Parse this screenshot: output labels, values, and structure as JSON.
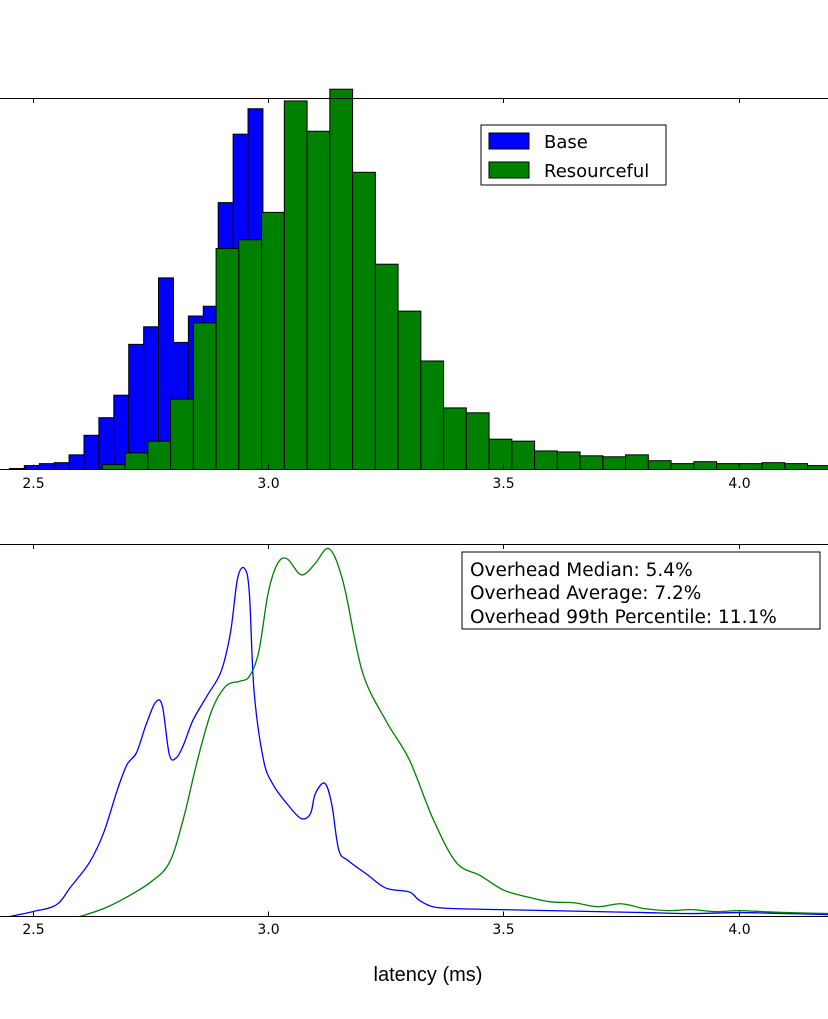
{
  "colors": {
    "base": "#0000ff",
    "resourceful": "#008000",
    "axis": "#000000",
    "background": "#ffffff"
  },
  "chart_data": [
    {
      "type": "bar",
      "subtype": "overlapping-histogram",
      "title": "",
      "xlabel": "",
      "ylabel": "",
      "xlim": [
        2.43,
        4.19
      ],
      "ylim": [
        0,
        380
      ],
      "xticks": [
        2.5,
        3.0,
        3.5,
        4.0
      ],
      "xtick_labels": [
        "2.5",
        "3.0",
        "3.5",
        "4.0"
      ],
      "yticks": [],
      "grid": false,
      "legend": {
        "position": "top-right",
        "entries": [
          "Base",
          "Resourceful"
        ]
      },
      "series": [
        {
          "name": "Base",
          "color": "#0000ff",
          "bin_start": 2.45,
          "bin_width": 0.0317,
          "values": [
            1,
            4,
            6,
            7,
            15,
            35,
            53,
            76,
            128,
            146,
            196,
            130,
            157,
            167,
            273,
            343,
            369,
            258,
            100,
            55,
            35,
            22,
            14,
            10,
            6,
            5,
            4,
            3,
            3,
            2,
            2,
            2,
            1,
            1,
            1,
            1,
            1,
            1,
            1,
            1,
            1,
            1
          ]
        },
        {
          "name": "Resourceful",
          "color": "#008000",
          "bin_start": 2.6475,
          "bin_width": 0.04836,
          "values": [
            5,
            17,
            29,
            72,
            150,
            226,
            235,
            263,
            377,
            346,
            389,
            304,
            210,
            162,
            111,
            63,
            58,
            31,
            29,
            19,
            18,
            14,
            13,
            15,
            9,
            6,
            8,
            6,
            6,
            7,
            6,
            4
          ]
        }
      ]
    },
    {
      "type": "line",
      "subtype": "density",
      "title": "",
      "xlabel": "latency (ms)",
      "ylabel": "",
      "xlim": [
        2.43,
        4.19
      ],
      "ylim": [
        0,
        3.8
      ],
      "xticks": [
        2.5,
        3.0,
        3.5,
        4.0
      ],
      "xtick_labels": [
        "2.5",
        "3.0",
        "3.5",
        "4.0"
      ],
      "yticks": [],
      "grid": false,
      "annotation": [
        "Overhead Median: 5.4%",
        "Overhead Average: 7.2%",
        "Overhead 99th Percentile: 11.1%"
      ],
      "series": [
        {
          "name": "Base",
          "color": "#0000ff",
          "x": [
            2.45,
            2.5,
            2.55,
            2.58,
            2.62,
            2.65,
            2.68,
            2.7,
            2.72,
            2.74,
            2.76,
            2.775,
            2.79,
            2.805,
            2.82,
            2.84,
            2.87,
            2.9,
            2.92,
            2.935,
            2.95,
            2.96,
            2.97,
            2.99,
            3.01,
            3.04,
            3.07,
            3.09,
            3.1,
            3.12,
            3.135,
            3.15,
            3.17,
            3.21,
            3.25,
            3.3,
            3.32,
            3.35,
            3.4,
            3.5,
            3.6,
            3.7,
            3.8,
            3.9,
            4.0,
            4.1,
            4.19
          ],
          "y": [
            0,
            0.05,
            0.12,
            0.3,
            0.55,
            0.85,
            1.3,
            1.55,
            1.67,
            1.95,
            2.18,
            2.15,
            1.65,
            1.62,
            1.75,
            2.0,
            2.25,
            2.5,
            2.9,
            3.45,
            3.55,
            3.3,
            2.3,
            1.6,
            1.35,
            1.15,
            1.0,
            1.05,
            1.25,
            1.36,
            1.15,
            0.68,
            0.57,
            0.43,
            0.29,
            0.25,
            0.17,
            0.1,
            0.08,
            0.07,
            0.06,
            0.05,
            0.04,
            0.03,
            0.04,
            0.03,
            0.02
          ]
        },
        {
          "name": "Resourceful",
          "color": "#008000",
          "x": [
            2.6,
            2.65,
            2.7,
            2.75,
            2.79,
            2.82,
            2.85,
            2.88,
            2.91,
            2.94,
            2.96,
            2.98,
            3.0,
            3.02,
            3.04,
            3.065,
            3.08,
            3.1,
            3.13,
            3.16,
            3.2,
            3.25,
            3.3,
            3.35,
            3.4,
            3.45,
            3.5,
            3.55,
            3.6,
            3.65,
            3.7,
            3.75,
            3.8,
            3.85,
            3.9,
            3.95,
            4.0,
            4.05,
            4.1,
            4.19
          ],
          "y": [
            0,
            0.08,
            0.2,
            0.35,
            0.55,
            1.0,
            1.6,
            2.1,
            2.35,
            2.4,
            2.45,
            2.7,
            3.3,
            3.6,
            3.65,
            3.5,
            3.5,
            3.6,
            3.75,
            3.4,
            2.5,
            2.0,
            1.6,
            1.0,
            0.55,
            0.42,
            0.27,
            0.2,
            0.15,
            0.14,
            0.1,
            0.13,
            0.08,
            0.06,
            0.07,
            0.05,
            0.06,
            0.05,
            0.04,
            0.03
          ]
        }
      ]
    }
  ]
}
